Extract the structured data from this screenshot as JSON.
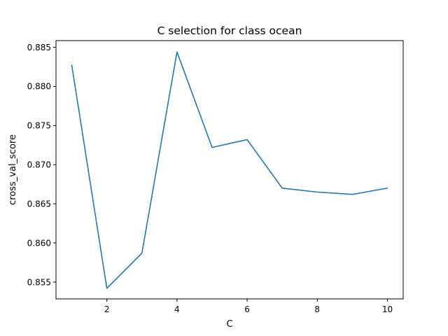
{
  "chart_data": {
    "type": "line",
    "title": "C selection for class ocean",
    "xlabel": "C",
    "ylabel": "cross_val_score",
    "xlim": [
      0.55,
      10.45
    ],
    "ylim": [
      0.85285,
      0.88585
    ],
    "xticks": [
      2,
      4,
      6,
      8,
      10
    ],
    "xtick_labels": [
      "2",
      "4",
      "6",
      "8",
      "10"
    ],
    "yticks": [
      0.855,
      0.86,
      0.865,
      0.87,
      0.875,
      0.88,
      0.885
    ],
    "ytick_labels": [
      "0.855",
      "0.860",
      "0.865",
      "0.870",
      "0.875",
      "0.880",
      "0.885"
    ],
    "grid": false,
    "series": [
      {
        "color": "#1f77b4",
        "x": [
          1,
          2,
          3,
          4,
          5,
          6,
          7,
          8,
          9,
          10
        ],
        "y": [
          0.8827,
          0.8542,
          0.8587,
          0.8844,
          0.8722,
          0.8732,
          0.867,
          0.8665,
          0.8662,
          0.867
        ]
      }
    ]
  }
}
